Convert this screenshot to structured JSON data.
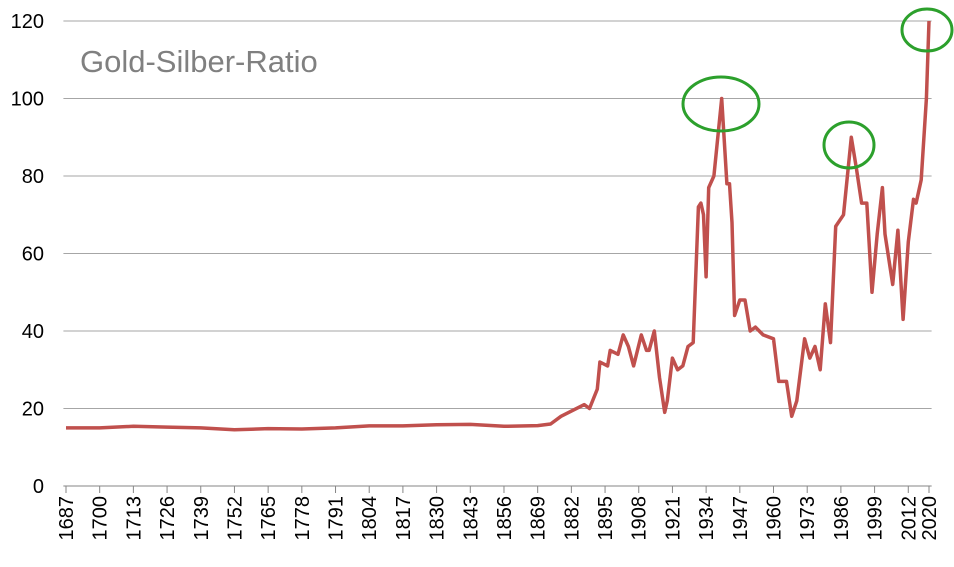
{
  "chart_data": {
    "type": "line",
    "title": "Gold-Silber-Ratio",
    "x": [
      1687,
      1700,
      1713,
      1726,
      1739,
      1752,
      1765,
      1778,
      1791,
      1804,
      1817,
      1830,
      1843,
      1856,
      1869,
      1874,
      1878,
      1887,
      1889,
      1892,
      1893,
      1896,
      1897,
      1900,
      1902,
      1904,
      1906,
      1909,
      1911,
      1912,
      1914,
      1916,
      1918,
      1919,
      1921,
      1923,
      1925,
      1927,
      1929,
      1931,
      1932,
      1933,
      1934,
      1935,
      1937,
      1940,
      1942,
      1943,
      1944,
      1945,
      1947,
      1949,
      1951,
      1953,
      1956,
      1960,
      1962,
      1965,
      1967,
      1969,
      1972,
      1974,
      1976,
      1978,
      1980,
      1982,
      1984,
      1987,
      1990,
      1992,
      1994,
      1996,
      1998,
      2000,
      2002,
      2003,
      2006,
      2008,
      2010,
      2012,
      2014,
      2015,
      2017,
      2019,
      2020
    ],
    "series": [
      {
        "color": "#c0504d",
        "values": [
          15,
          15,
          15.4,
          15.2,
          15,
          14.5,
          14.8,
          14.7,
          15,
          15.5,
          15.5,
          15.8,
          15.9,
          15.4,
          15.6,
          16,
          18,
          21,
          20,
          25,
          32,
          31,
          35,
          34,
          39,
          36,
          31,
          39,
          35,
          35,
          40,
          28,
          19,
          22,
          33,
          30,
          31,
          36,
          37,
          72,
          73,
          70,
          54,
          77,
          80,
          100,
          78,
          78,
          68,
          44,
          48,
          48,
          40,
          41,
          39,
          38,
          27,
          27,
          18,
          22,
          38,
          33,
          36,
          30,
          47,
          37,
          67,
          70,
          90,
          82,
          73,
          73,
          50,
          65,
          77,
          65,
          52,
          66,
          43,
          63,
          74,
          73,
          79,
          100,
          120
        ]
      }
    ],
    "xlim": [
      1686,
      2021
    ],
    "xticks": [
      1687,
      1700,
      1713,
      1726,
      1739,
      1752,
      1765,
      1778,
      1791,
      1804,
      1817,
      1830,
      1843,
      1856,
      1869,
      1882,
      1895,
      1908,
      1921,
      1934,
      1947,
      1960,
      1973,
      1986,
      1999,
      2012,
      2020
    ],
    "ylim": [
      0,
      120
    ],
    "yticks": [
      0,
      20,
      40,
      60,
      80,
      100,
      120
    ],
    "grid": true
  }
}
